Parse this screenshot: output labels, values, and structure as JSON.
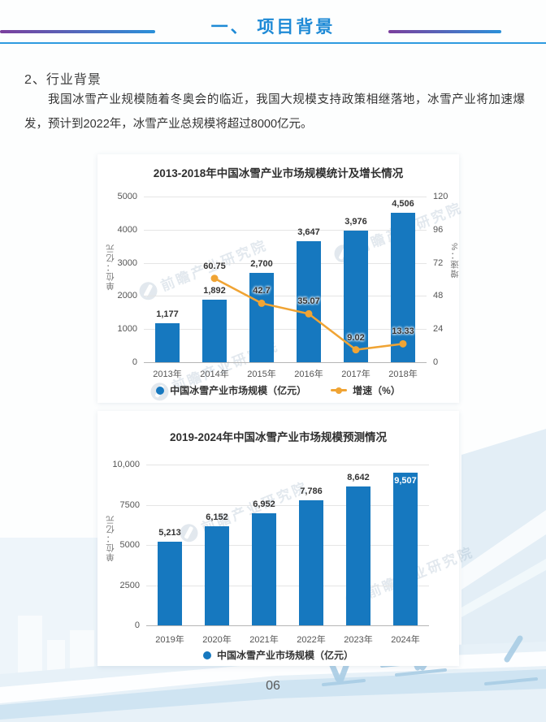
{
  "page": {
    "header": {
      "title": "一、 项目背景"
    },
    "section_heading": "2、行业背景",
    "paragraph": "我国冰雪产业规模随着冬奥会的临近，我国大规模支持政策相继落地，冰雪产业将加速爆发，预计到2022年，冰雪产业总规模将超过8000亿元。",
    "page_number": "06"
  },
  "watermark": {
    "text": "前瞻产业研究院"
  },
  "colors": {
    "accent_blue": "#1e8ad6",
    "header_purple": "#7b3f9d",
    "bar_blue": "#1678bf",
    "line_orange": "#f0a434"
  },
  "chart_data": [
    {
      "type": "bar",
      "title": "2013-2018年中国冰雪产业市场规模统计及增长情况",
      "categories": [
        "2013年",
        "2014年",
        "2015年",
        "2016年",
        "2017年",
        "2018年"
      ],
      "series": [
        {
          "name": "中国冰雪产业市场规模（亿元）",
          "type": "bar",
          "values": [
            1177,
            1892,
            2700,
            3647,
            3976,
            4506
          ],
          "labels": [
            "1,177",
            "1,892",
            "2,700",
            "3,647",
            "3,976",
            "4,506"
          ],
          "color": "#1678bf"
        },
        {
          "name": "增速（%）",
          "type": "line",
          "values": [
            null,
            60.75,
            42.7,
            35.07,
            9.02,
            13.33
          ],
          "labels": [
            "",
            "60.75",
            "42.7",
            "35.07",
            "9.02",
            "13.33"
          ],
          "color": "#f0a434"
        }
      ],
      "left_axis": {
        "label": "单位：亿元",
        "ticks": [
          "5000",
          "4000",
          "3000",
          "2000",
          "1000",
          "0"
        ],
        "max": 5000
      },
      "right_axis": {
        "label": "增速：%",
        "ticks": [
          "120",
          "96",
          "72",
          "48",
          "24",
          "0"
        ],
        "max": 120
      },
      "legend_position": "bottom",
      "grid": true
    },
    {
      "type": "bar",
      "title": "2019-2024年中国冰雪产业市场规模预测情况",
      "categories": [
        "2019年",
        "2020年",
        "2021年",
        "2022年",
        "2023年",
        "2024年"
      ],
      "series": [
        {
          "name": "中国冰雪产业市场规模（亿元）",
          "type": "bar",
          "values": [
            5213,
            6152,
            6952,
            7786,
            8642,
            9507
          ],
          "labels": [
            "5,213",
            "6,152",
            "6,952",
            "7,786",
            "8,642",
            "9,507"
          ],
          "color": "#1678bf"
        }
      ],
      "left_axis": {
        "label": "单位：亿元",
        "ticks": [
          "10,000",
          "7500",
          "5000",
          "2500",
          "0"
        ],
        "max": 10000
      },
      "legend_position": "bottom",
      "grid": true
    }
  ]
}
